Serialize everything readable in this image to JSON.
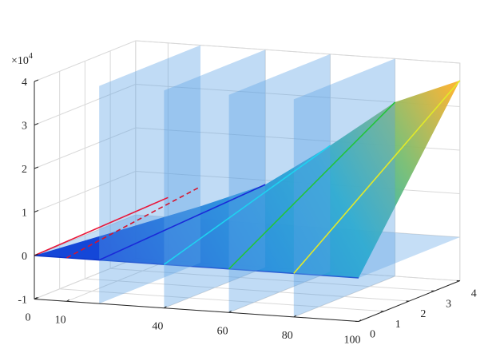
{
  "chart_data": {
    "type": "3d-surface",
    "title": "",
    "xlabel": "",
    "ylabel": "",
    "zlabel": "",
    "z_multiplier_label": "×10",
    "z_multiplier_exponent": "4",
    "xlim": [
      0,
      100
    ],
    "ylim": [
      0,
      4
    ],
    "zlim": [
      -1,
      4
    ],
    "x_ticks": [
      {
        "value": 0,
        "label": "0"
      },
      {
        "value": 10,
        "label": "10"
      },
      {
        "value": 40,
        "label": "40"
      },
      {
        "value": 60,
        "label": "60"
      },
      {
        "value": 80,
        "label": "80"
      },
      {
        "value": 100,
        "label": "100"
      }
    ],
    "y_ticks": [
      {
        "value": 0,
        "label": "0"
      },
      {
        "value": 1,
        "label": "1"
      },
      {
        "value": 2,
        "label": "2"
      },
      {
        "value": 3,
        "label": "3"
      },
      {
        "value": 4,
        "label": "4"
      }
    ],
    "z_ticks": [
      {
        "value": -1,
        "label": "-1"
      },
      {
        "value": 0,
        "label": "0"
      },
      {
        "value": 1,
        "label": "1"
      },
      {
        "value": 2,
        "label": "2"
      },
      {
        "value": 3,
        "label": "3"
      },
      {
        "value": 4,
        "label": "4"
      }
    ],
    "grid": true,
    "surface": {
      "colormap": "parula",
      "points": [
        {
          "x": 0,
          "y": 0,
          "z": 0
        },
        {
          "x": 100,
          "y": 0,
          "z": 0
        },
        {
          "x": 100,
          "y": 4,
          "z": 3.6
        },
        {
          "x": 80,
          "y": 4,
          "z": 3.0
        },
        {
          "x": 60,
          "y": 4,
          "z": 1.9
        },
        {
          "x": 40,
          "y": 4,
          "z": 0.9
        },
        {
          "x": 20,
          "y": 4,
          "z": 0.3
        }
      ]
    },
    "edge_lines": [
      {
        "name": "",
        "color": "#e8173a",
        "style": "solid",
        "points": [
          {
            "x": 0,
            "y": 0,
            "z": 0
          },
          {
            "x": 10,
            "y": 4,
            "z": 0.45
          }
        ]
      },
      {
        "name": "",
        "color": "#d6142e",
        "style": "dashed",
        "points": [
          {
            "x": 10,
            "y": 0,
            "z": 0
          },
          {
            "x": 20,
            "y": 4,
            "z": 0.75
          }
        ]
      },
      {
        "name": "",
        "color": "#1a2ad8",
        "style": "solid",
        "points": [
          {
            "x": 20,
            "y": 0,
            "z": 0
          },
          {
            "x": 40,
            "y": 4,
            "z": 0.9
          }
        ]
      },
      {
        "name": "",
        "color": "#1fd2f0",
        "style": "solid",
        "points": [
          {
            "x": 40,
            "y": 0,
            "z": 0
          },
          {
            "x": 60,
            "y": 4,
            "z": 1.9
          }
        ]
      },
      {
        "name": "",
        "color": "#23c43a",
        "style": "solid",
        "points": [
          {
            "x": 60,
            "y": 0,
            "z": 0
          },
          {
            "x": 80,
            "y": 4,
            "z": 3.0
          }
        ]
      },
      {
        "name": "",
        "color": "#e3ea28",
        "style": "solid",
        "points": [
          {
            "x": 80,
            "y": 0,
            "z": 0
          },
          {
            "x": 100,
            "y": 4,
            "z": 3.6
          }
        ]
      }
    ],
    "planes": [
      {
        "name": "",
        "orientation": "x",
        "value": 20,
        "y_range": [
          0,
          4
        ],
        "z_range": [
          -1,
          4
        ],
        "color": "#5aa0e6"
      },
      {
        "name": "",
        "orientation": "x",
        "value": 40,
        "y_range": [
          0,
          4
        ],
        "z_range": [
          -1,
          4
        ],
        "color": "#5aa0e6"
      },
      {
        "name": "",
        "orientation": "x",
        "value": 60,
        "y_range": [
          0,
          4
        ],
        "z_range": [
          -1,
          4
        ],
        "color": "#5aa0e6"
      },
      {
        "name": "",
        "orientation": "x",
        "value": 80,
        "y_range": [
          0,
          4
        ],
        "z_range": [
          -1,
          4
        ],
        "color": "#5aa0e6"
      },
      {
        "name": "",
        "orientation": "z",
        "value": 0,
        "x_range": [
          0,
          100
        ],
        "y_range": [
          0,
          4
        ],
        "color": "#5aa0e6"
      }
    ]
  }
}
